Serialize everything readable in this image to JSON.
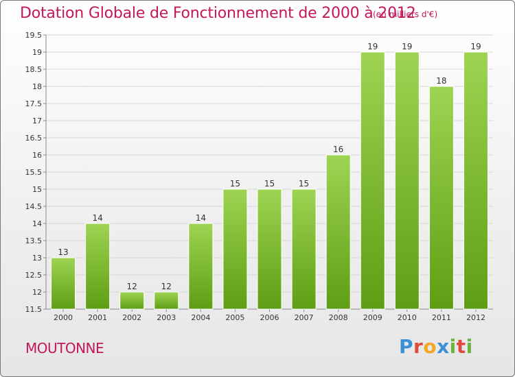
{
  "header": {
    "title": "Dotation Globale de Fonctionnement de 2000 à 2012",
    "unit": "(en milliers d'€)"
  },
  "footer": {
    "commune": "MOUTONNE",
    "logo_text": "Proxiti"
  },
  "colors": {
    "title": "#c2185b",
    "bar_light": "#9ed452",
    "bar_dark": "#5e9e14",
    "logo": [
      "#3b8fd6",
      "#e04a3c",
      "#f3a623",
      "#3b8fd6",
      "#6cb33f",
      "#e04a3c",
      "#6cb33f"
    ]
  },
  "chart_data": {
    "type": "bar",
    "categories": [
      "2000",
      "2001",
      "2002",
      "2003",
      "2004",
      "2005",
      "2006",
      "2007",
      "2008",
      "2009",
      "2010",
      "2011",
      "2012"
    ],
    "values": [
      13,
      14,
      12,
      12,
      14,
      15,
      15,
      15,
      16,
      19,
      19,
      18,
      19
    ],
    "data_labels": [
      "13",
      "14",
      "12",
      "12",
      "14",
      "15",
      "15",
      "15",
      "16",
      "19",
      "19",
      "18",
      "19"
    ],
    "ylim": [
      11.5,
      19.5
    ],
    "yticks": [
      "11.5",
      "12",
      "12.5",
      "13",
      "13.5",
      "14",
      "14.5",
      "15",
      "15.5",
      "16",
      "16.5",
      "17",
      "17.5",
      "18",
      "18.5",
      "19",
      "19.5"
    ],
    "grid": true,
    "legend": "none"
  }
}
